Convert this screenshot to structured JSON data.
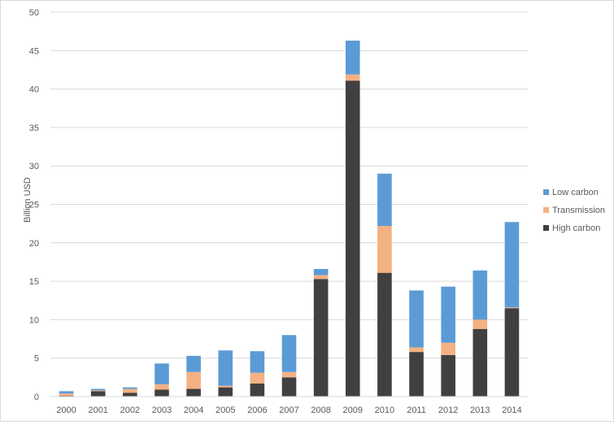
{
  "chart_data": {
    "type": "bar",
    "stacked": true,
    "ylabel": "Billion USD",
    "ylim": [
      0,
      50
    ],
    "yticks": [
      0,
      5,
      10,
      15,
      20,
      25,
      30,
      35,
      40,
      45,
      50
    ],
    "grid": true,
    "legend": "right",
    "categories": [
      "2000",
      "2001",
      "2002",
      "2003",
      "2004",
      "2005",
      "2006",
      "2007",
      "2008",
      "2009",
      "2010",
      "2011",
      "2012",
      "2013",
      "2014"
    ],
    "series": [
      {
        "name": "High carbon",
        "color": "#404040",
        "values": [
          0.1,
          0.7,
          0.5,
          0.9,
          1.0,
          1.2,
          1.7,
          2.5,
          15.3,
          41.1,
          16.1,
          5.8,
          5.4,
          8.8,
          11.5
        ]
      },
      {
        "name": "Transmission",
        "color": "#f4b183",
        "values": [
          0.3,
          0.1,
          0.5,
          0.7,
          2.2,
          0.2,
          1.4,
          0.7,
          0.5,
          0.8,
          6.1,
          0.6,
          1.6,
          1.2,
          0.1
        ]
      },
      {
        "name": "Low carbon",
        "color": "#5b9bd5",
        "values": [
          0.3,
          0.2,
          0.2,
          2.7,
          2.1,
          4.6,
          2.8,
          4.8,
          0.8,
          4.4,
          6.8,
          7.4,
          7.3,
          6.4,
          11.1
        ]
      }
    ],
    "legend_order": [
      "Low carbon",
      "Transmission",
      "High carbon"
    ]
  }
}
